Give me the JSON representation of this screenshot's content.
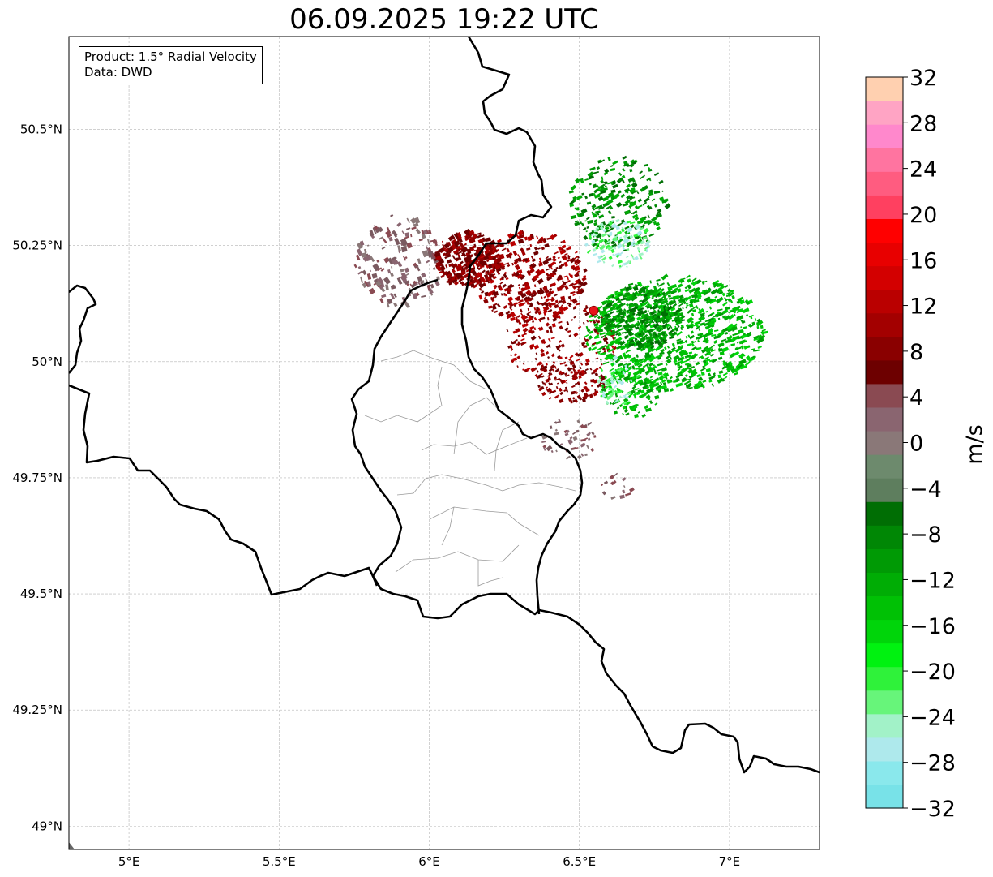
{
  "title": "06.09.2025 19:22 UTC",
  "info": {
    "product": "Product: 1.5° Radial Velocity",
    "source": "Data: DWD"
  },
  "map": {
    "lon_range": [
      4.8,
      7.3
    ],
    "lat_range": [
      48.95,
      50.7
    ],
    "lon_ticks": [
      5.0,
      5.5,
      6.0,
      6.5,
      7.0
    ],
    "lon_tick_labels": [
      "5°E",
      "5.5°E",
      "6°E",
      "6.5°E",
      "7°E"
    ],
    "lat_ticks": [
      50.5,
      50.25,
      50.0,
      49.75,
      49.5,
      49.25,
      49.0
    ],
    "lat_tick_labels": [
      "50.5°N",
      "50.25°N",
      "50°N",
      "49.75°N",
      "49.5°N",
      "49.25°N",
      "49°N"
    ],
    "gridlines": true,
    "radar_site": {
      "lon": 6.548,
      "lat": 50.11,
      "color": "#e8141b"
    }
  },
  "colorbar": {
    "label": "m/s",
    "range": [
      -32,
      32
    ],
    "tick_values": [
      32,
      28,
      24,
      20,
      16,
      12,
      8,
      4,
      0,
      -4,
      -8,
      -12,
      -16,
      -20,
      -24,
      -28,
      -32
    ],
    "tick_labels": [
      "32",
      "28",
      "24",
      "20",
      "16",
      "12",
      "8",
      "4",
      "0",
      "−4",
      "−8",
      "−12",
      "−16",
      "−20",
      "−24",
      "−28",
      "−32"
    ],
    "colors_bottom_to_top": [
      "#78e2e8",
      "#8ae8ec",
      "#aee9ec",
      "#a2f2c8",
      "#67f57a",
      "#2ff23a",
      "#00f210",
      "#00d50a",
      "#00c105",
      "#00ad05",
      "#009a05",
      "#008705",
      "#006e04",
      "#5e7e5e",
      "#6d8a6d",
      "#8a7878",
      "#8a6570",
      "#8a4a52",
      "#6d0000",
      "#8a0000",
      "#a30000",
      "#ba0000",
      "#d30000",
      "#e80000",
      "#ff0000",
      "#ff4060",
      "#ff5c80",
      "#ff74a0",
      "#ff88cc",
      "#ffa4c4",
      "#ffd0b0"
    ]
  }
}
